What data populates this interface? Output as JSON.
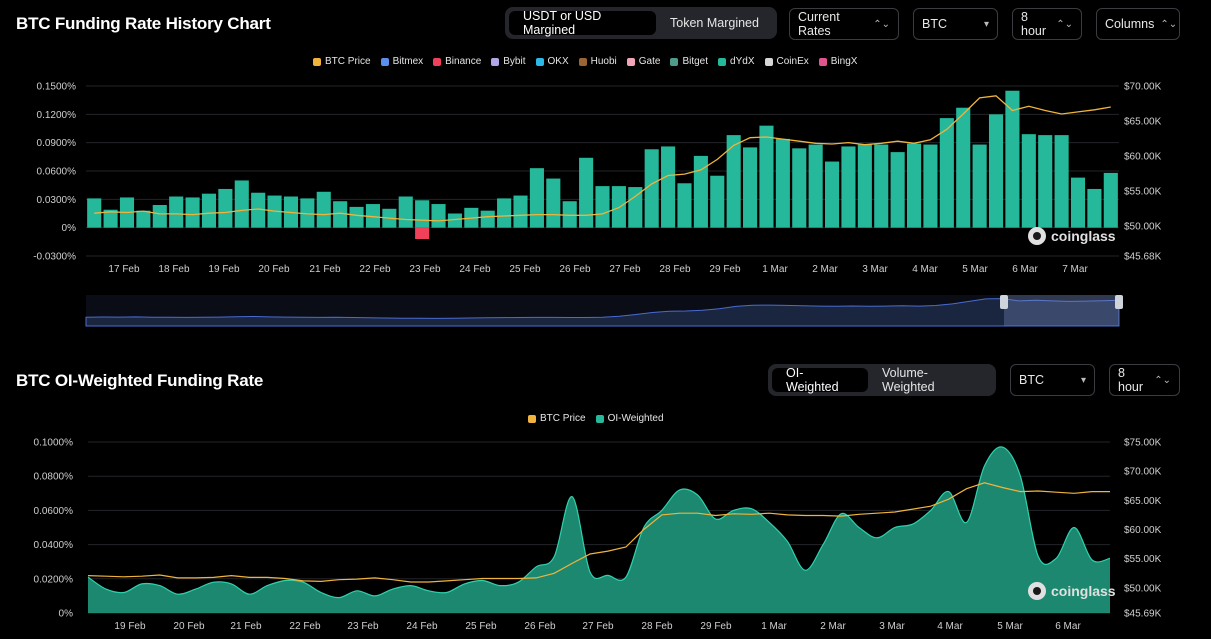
{
  "panel1": {
    "title": "BTC Funding Rate History Chart",
    "margin_toggle": [
      "USDT or USD Margined",
      "Token Margined"
    ],
    "rates_dropdown": "Current Rates",
    "coin_dropdown": "BTC",
    "interval_dropdown": "8 hour",
    "chart_type_dropdown": "Columns",
    "legend": [
      {
        "label": "BTC Price",
        "color": "#f0b43c"
      },
      {
        "label": "Bitmex",
        "color": "#5b8def"
      },
      {
        "label": "Binance",
        "color": "#f0405a"
      },
      {
        "label": "Bybit",
        "color": "#b3a6e8"
      },
      {
        "label": "OKX",
        "color": "#2bb9e8"
      },
      {
        "label": "Huobi",
        "color": "#9b6433"
      },
      {
        "label": "Gate",
        "color": "#f2a4b8"
      },
      {
        "label": "Bitget",
        "color": "#4f9b8a"
      },
      {
        "label": "dYdX",
        "color": "#25b89a"
      },
      {
        "label": "CoinEx",
        "color": "#d7d7d7"
      },
      {
        "label": "BingX",
        "color": "#e0558f"
      }
    ],
    "watermark": "coinglass"
  },
  "panel2": {
    "title": "BTC OI-Weighted Funding Rate",
    "weight_toggle": [
      "OI-Weighted",
      "Volume-Weighted"
    ],
    "coin_dropdown": "BTC",
    "interval_dropdown": "8 hour",
    "legend": [
      {
        "label": "BTC Price",
        "color": "#f0b43c"
      },
      {
        "label": "OI-Weighted",
        "color": "#25b89a"
      }
    ],
    "watermark": "coinglass"
  },
  "chart_data": [
    {
      "type": "bar",
      "title": "BTC Funding Rate History Chart",
      "x_ticks": [
        "17 Feb",
        "18 Feb",
        "19 Feb",
        "20 Feb",
        "21 Feb",
        "22 Feb",
        "23 Feb",
        "24 Feb",
        "25 Feb",
        "26 Feb",
        "27 Feb",
        "28 Feb",
        "29 Feb",
        "1 Mar",
        "2 Mar",
        "3 Mar",
        "4 Mar",
        "5 Mar",
        "6 Mar",
        "7 Mar"
      ],
      "y_left_ticks": [
        "0.1500%",
        "0.1200%",
        "0.0900%",
        "0.0600%",
        "0.0300%",
        "0%",
        "-0.0300%"
      ],
      "y_right_ticks": [
        "$70.00K",
        "$65.00K",
        "$60.00K",
        "$55.00K",
        "$50.00K",
        "$45.68K"
      ],
      "ylim_left": [
        -0.03,
        0.15
      ],
      "ylim_right": [
        45680,
        70000
      ],
      "series": [
        {
          "name": "dYdX",
          "unit": "%",
          "values": [
            0.031,
            0.019,
            0.032,
            0.018,
            0.024,
            0.033,
            0.032,
            0.036,
            0.041,
            0.05,
            0.037,
            0.034,
            0.033,
            0.031,
            0.038,
            0.028,
            0.022,
            0.025,
            0.02,
            0.033,
            0.029,
            0.025,
            0.015,
            0.021,
            0.018,
            0.031,
            0.034,
            0.063,
            0.052,
            0.028,
            0.074,
            0.044,
            0.044,
            0.043,
            0.083,
            0.086,
            0.047,
            0.076,
            0.055,
            0.098,
            0.085,
            0.108,
            0.094,
            0.084,
            0.088,
            0.07,
            0.086,
            0.088,
            0.088,
            0.08,
            0.089,
            0.088,
            0.116,
            0.127,
            0.088,
            0.12,
            0.145,
            0.099,
            0.098,
            0.098,
            0.053,
            0.041,
            0.058
          ]
        },
        {
          "name": "Binance",
          "unit": "%",
          "values": [
            0,
            0,
            0,
            0,
            0,
            0,
            0,
            0,
            0,
            0,
            0,
            0,
            0,
            0,
            0,
            0,
            0,
            0,
            0,
            0,
            -0.012,
            0,
            0,
            0,
            0,
            0,
            0,
            0,
            0,
            0,
            0,
            0,
            0,
            0,
            0,
            0,
            0,
            0,
            0,
            0,
            0,
            0,
            0,
            0,
            0,
            0,
            0,
            0,
            0,
            0,
            0,
            0,
            0,
            0,
            0,
            0,
            0,
            0,
            0,
            0,
            0,
            0,
            0
          ]
        },
        {
          "name": "BTC Price",
          "unit": "$",
          "values": [
            51800,
            52000,
            51900,
            52100,
            51700,
            51700,
            51600,
            51800,
            51900,
            52200,
            52400,
            52100,
            51900,
            51700,
            51600,
            51800,
            51500,
            51300,
            51100,
            50900,
            50800,
            50700,
            50900,
            51100,
            51300,
            51400,
            51500,
            51600,
            51600,
            51500,
            51500,
            51700,
            52600,
            54200,
            56000,
            57200,
            57400,
            58000,
            59500,
            61500,
            62600,
            62700,
            62400,
            62100,
            61800,
            61700,
            61900,
            61600,
            61800,
            62100,
            61800,
            62300,
            63800,
            66000,
            68300,
            68600,
            66500,
            67100,
            66500,
            66000,
            66300,
            66600,
            67000
          ]
        }
      ]
    },
    {
      "type": "area",
      "title": "BTC OI-Weighted Funding Rate",
      "x_ticks": [
        "19 Feb",
        "20 Feb",
        "21 Feb",
        "22 Feb",
        "23 Feb",
        "24 Feb",
        "25 Feb",
        "26 Feb",
        "27 Feb",
        "28 Feb",
        "29 Feb",
        "1 Mar",
        "2 Mar",
        "3 Mar",
        "4 Mar",
        "5 Mar",
        "6 Mar"
      ],
      "y_left_ticks": [
        "0.1000%",
        "0.0800%",
        "0.0600%",
        "0.0400%",
        "0.0200%",
        "0%"
      ],
      "y_right_ticks": [
        "$75.00K",
        "$70.00K",
        "$65.00K",
        "$60.00K",
        "$55.00K",
        "$50.00K",
        "$45.69K"
      ],
      "ylim_left": [
        0,
        0.1
      ],
      "ylim_right": [
        45690,
        75000
      ],
      "series": [
        {
          "name": "OI-Weighted",
          "unit": "%",
          "values": [
            0.021,
            0.014,
            0.012,
            0.017,
            0.016,
            0.011,
            0.014,
            0.018,
            0.017,
            0.011,
            0.016,
            0.019,
            0.018,
            0.012,
            0.009,
            0.013,
            0.01,
            0.014,
            0.016,
            0.013,
            0.012,
            0.017,
            0.019,
            0.016,
            0.018,
            0.027,
            0.033,
            0.068,
            0.024,
            0.022,
            0.021,
            0.05,
            0.06,
            0.072,
            0.069,
            0.055,
            0.06,
            0.061,
            0.053,
            0.042,
            0.025,
            0.04,
            0.058,
            0.05,
            0.044,
            0.05,
            0.052,
            0.06,
            0.071,
            0.053,
            0.086,
            0.097,
            0.08,
            0.033,
            0.032,
            0.05,
            0.031,
            0.032
          ]
        },
        {
          "name": "BTC Price",
          "unit": "$",
          "values": [
            52100,
            52000,
            51900,
            52000,
            52200,
            51700,
            51700,
            51800,
            52100,
            51800,
            51800,
            51600,
            51200,
            51100,
            51400,
            51500,
            51700,
            51400,
            51000,
            51000,
            51200,
            51400,
            51600,
            51600,
            51600,
            51700,
            52500,
            54200,
            55800,
            56300,
            57000,
            60000,
            62500,
            62800,
            62800,
            62400,
            62700,
            62600,
            62800,
            62500,
            62400,
            62400,
            62300,
            62600,
            62800,
            63000,
            63500,
            64000,
            65200,
            67000,
            68000,
            67200,
            66500,
            66600,
            66400,
            66200,
            66500,
            66500
          ]
        }
      ]
    }
  ]
}
